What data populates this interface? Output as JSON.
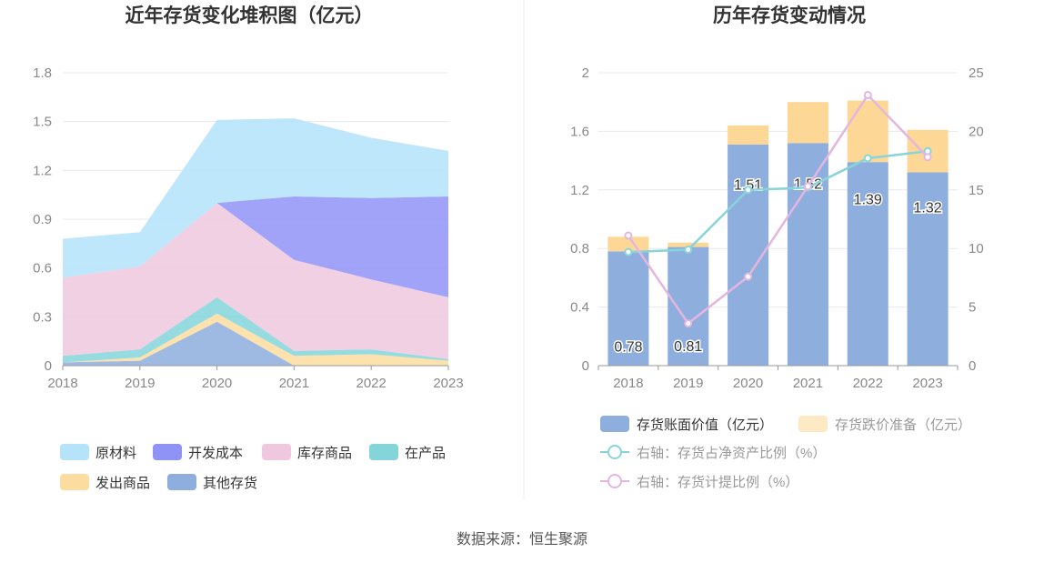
{
  "source_text": "数据来源：恒生聚源",
  "chart_data": [
    {
      "type": "area",
      "stacked": true,
      "title": "近年存货变化堆积图（亿元）",
      "x": [
        "2018",
        "2019",
        "2020",
        "2021",
        "2022",
        "2023"
      ],
      "ylim": [
        0,
        1.8
      ],
      "yticks": [
        "0",
        "0.3",
        "0.6",
        "0.9",
        "1.2",
        "1.5",
        "1.8"
      ],
      "grid": true,
      "legend_position": "bottom",
      "series": [
        {
          "name": "其他存货",
          "color": "#8eaedd",
          "values": [
            0.02,
            0.03,
            0.27,
            0.0,
            0.0,
            0.0
          ]
        },
        {
          "name": "发出商品",
          "color": "#fddd9f",
          "values": [
            0.0,
            0.02,
            0.05,
            0.06,
            0.07,
            0.03
          ]
        },
        {
          "name": "在产品",
          "color": "#84d5d9",
          "values": [
            0.04,
            0.05,
            0.1,
            0.03,
            0.03,
            0.01
          ]
        },
        {
          "name": "库存商品",
          "color": "#efc8df",
          "values": [
            0.48,
            0.51,
            0.58,
            0.56,
            0.43,
            0.38
          ]
        },
        {
          "name": "开发成本",
          "color": "#8f93f6",
          "values": [
            0.0,
            0.0,
            0.0,
            0.39,
            0.5,
            0.62
          ]
        },
        {
          "name": "原材料",
          "color": "#b4e3fa",
          "values": [
            0.24,
            0.21,
            0.51,
            0.48,
            0.37,
            0.28
          ]
        }
      ],
      "legend_order": [
        "原材料",
        "开发成本",
        "库存商品",
        "在产品",
        "发出商品",
        "其他存货"
      ]
    },
    {
      "type": "bar",
      "stacked": true,
      "title": "历年存货变动情况",
      "categories": [
        "2018",
        "2019",
        "2020",
        "2021",
        "2022",
        "2023"
      ],
      "ylim": [
        0,
        2
      ],
      "yticks": [
        "0",
        "0.4",
        "0.8",
        "1.2",
        "1.6",
        "2"
      ],
      "y2lim": [
        0,
        25
      ],
      "y2ticks": [
        "0",
        "5",
        "10",
        "15",
        "20",
        "25"
      ],
      "grid": true,
      "legend_position": "bottom",
      "series": [
        {
          "name": "存货账面价值（亿元）",
          "color": "#8eaedd",
          "values": [
            0.78,
            0.81,
            1.51,
            1.52,
            1.39,
            1.32
          ],
          "labels": [
            "0.78",
            "0.81",
            "1.51",
            "1.52",
            "1.39",
            "1.32"
          ]
        },
        {
          "name": "存货跌价准备（亿元）",
          "color": "#fdd796",
          "values": [
            0.1,
            0.03,
            0.13,
            0.28,
            0.42,
            0.29
          ]
        }
      ],
      "line_series": [
        {
          "name": "右轴：存货占净资产比例（%）",
          "color": "#88d4d9",
          "values": [
            9.7,
            9.9,
            15.0,
            15.2,
            17.7,
            18.3
          ]
        },
        {
          "name": "右轴：存货计提比例（%）",
          "color": "#e4b6df",
          "values": [
            11.1,
            3.6,
            7.6,
            15.3,
            23.1,
            17.8
          ]
        }
      ]
    }
  ]
}
